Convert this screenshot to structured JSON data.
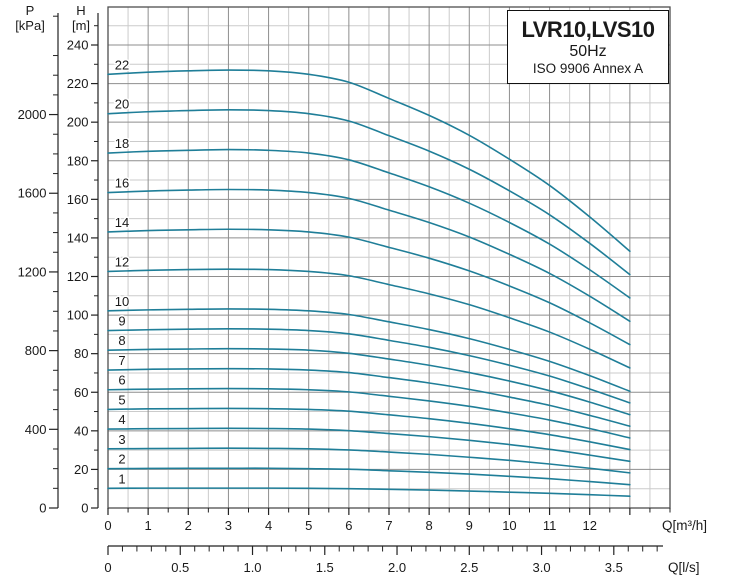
{
  "colors": {
    "curve": "#1f7e98",
    "grid_minor": "#cbcbcb",
    "grid_major": "#8e8e8e",
    "plot_border": "#4f4f4f",
    "axis_line": "#222222",
    "text": "#1a1a1a",
    "background": "#ffffff"
  },
  "title_box": {
    "model": "LVR10,LVS10",
    "frequency": "50Hz",
    "standard": "ISO 9906 Annex A"
  },
  "p_axis": {
    "symbol": "P",
    "unit": "[kPa]",
    "tick_labels": [
      0,
      400,
      800,
      1200,
      1600,
      2000
    ],
    "minor_step_kpa": 100,
    "minor_max_kpa": 2500
  },
  "h_axis": {
    "symbol": "H",
    "unit": "[m]",
    "tick_labels": [
      0,
      20,
      40,
      60,
      80,
      100,
      120,
      140,
      160,
      180,
      200,
      220,
      240
    ],
    "minor_step_m": 10,
    "minor_max_m": 250
  },
  "q_axis": {
    "unit_label": "Q[m³/h]",
    "tick_labels": [
      0,
      1,
      2,
      3,
      4,
      5,
      6,
      7,
      8,
      9,
      10,
      11,
      12
    ],
    "minor_step": 0.5,
    "axis_max": 14
  },
  "ls_axis": {
    "unit_label": "Q[l/s]",
    "tick_labels": [
      "0",
      "0.5",
      "1.0",
      "1.5",
      "2.0",
      "2.5",
      "3.0",
      "3.5"
    ],
    "minor_step": 0.1,
    "axis_max": 3.8
  },
  "chart_data": {
    "type": "line",
    "title": "LVR10,LVS10  50Hz  ISO 9906 Annex A",
    "xlabel": "Q[m³/h]",
    "ylabel": "H[m]",
    "x_range_m3h": [
      0,
      14
    ],
    "y_range_m": [
      0,
      260
    ],
    "grid": "on",
    "secondary_x_axis": "Q[l/s], 0 to 3.8 (1 l/s = 3.6 m³/h)",
    "secondary_y_axis": "P[kPa], 0 to 2500 (1 m ≈ 9.81 kPa)",
    "curves_end_at_m3h": 13,
    "x_m3h": [
      0,
      1,
      2,
      3,
      4,
      5,
      6,
      7,
      8,
      9,
      10,
      11,
      12,
      13
    ],
    "head_per_stage_m": [
      10.22,
      10.27,
      10.3,
      10.32,
      10.3,
      10.22,
      10.03,
      9.65,
      9.25,
      8.78,
      8.22,
      7.6,
      6.86,
      6.05
    ],
    "series": [
      {
        "name": "22",
        "stages": 22,
        "head_m": [
          224.8,
          225.9,
          226.6,
          227.0,
          226.6,
          224.8,
          220.7,
          212.3,
          203.5,
          193.2,
          180.8,
          167.2,
          150.9,
          133.1
        ]
      },
      {
        "name": "20",
        "stages": 20,
        "head_m": [
          204.4,
          205.4,
          206.0,
          206.4,
          206.0,
          204.4,
          200.6,
          193.0,
          185.0,
          175.6,
          164.4,
          152.0,
          137.2,
          121.0
        ]
      },
      {
        "name": "18",
        "stages": 18,
        "head_m": [
          184.0,
          184.9,
          185.4,
          185.8,
          185.4,
          184.0,
          180.5,
          173.7,
          166.5,
          158.0,
          148.0,
          136.8,
          123.5,
          108.9
        ]
      },
      {
        "name": "16",
        "stages": 16,
        "head_m": [
          163.5,
          164.3,
          164.8,
          165.1,
          164.8,
          163.5,
          160.5,
          154.4,
          148.0,
          140.5,
          131.5,
          121.6,
          109.8,
          96.8
        ]
      },
      {
        "name": "14",
        "stages": 14,
        "head_m": [
          143.1,
          143.8,
          144.2,
          144.5,
          144.2,
          143.1,
          140.4,
          135.1,
          129.5,
          122.9,
          115.1,
          106.4,
          96.0,
          84.7
        ]
      },
      {
        "name": "12",
        "stages": 12,
        "head_m": [
          122.6,
          123.2,
          123.6,
          123.8,
          123.6,
          122.6,
          120.4,
          115.8,
          111.0,
          105.4,
          98.6,
          91.2,
          82.3,
          72.6
        ]
      },
      {
        "name": "10",
        "stages": 10,
        "head_m": [
          102.2,
          102.7,
          103.0,
          103.2,
          103.0,
          102.2,
          100.3,
          96.5,
          92.5,
          87.8,
          82.2,
          76.0,
          68.6,
          60.5
        ]
      },
      {
        "name": "9",
        "stages": 9,
        "head_m": [
          92.0,
          92.4,
          92.7,
          92.9,
          92.7,
          92.0,
          90.3,
          86.9,
          83.3,
          79.0,
          74.0,
          68.4,
          61.7,
          54.5
        ]
      },
      {
        "name": "8",
        "stages": 8,
        "head_m": [
          81.8,
          82.2,
          82.4,
          82.6,
          82.4,
          81.8,
          80.2,
          77.2,
          74.0,
          70.2,
          65.8,
          60.8,
          54.9,
          48.4
        ]
      },
      {
        "name": "7",
        "stages": 7,
        "head_m": [
          71.5,
          71.9,
          72.1,
          72.2,
          72.1,
          71.5,
          70.2,
          67.6,
          64.8,
          61.5,
          57.5,
          53.2,
          48.0,
          42.4
        ]
      },
      {
        "name": "6",
        "stages": 6,
        "head_m": [
          61.3,
          61.6,
          61.8,
          61.9,
          61.8,
          61.3,
          60.2,
          57.9,
          55.5,
          52.7,
          49.3,
          45.6,
          41.2,
          36.3
        ]
      },
      {
        "name": "5",
        "stages": 5,
        "head_m": [
          51.1,
          51.4,
          51.5,
          51.6,
          51.5,
          51.1,
          50.2,
          48.3,
          46.3,
          43.9,
          41.1,
          38.0,
          34.3,
          30.3
        ]
      },
      {
        "name": "4",
        "stages": 4,
        "head_m": [
          40.9,
          41.1,
          41.2,
          41.3,
          41.2,
          40.9,
          40.1,
          38.6,
          37.0,
          35.1,
          32.9,
          30.4,
          27.4,
          24.2
        ]
      },
      {
        "name": "3",
        "stages": 3,
        "head_m": [
          30.7,
          30.8,
          30.9,
          31.0,
          30.9,
          30.7,
          30.1,
          29.0,
          27.8,
          26.3,
          24.7,
          22.8,
          20.6,
          18.2
        ]
      },
      {
        "name": "2",
        "stages": 2,
        "head_m": [
          20.4,
          20.5,
          20.6,
          20.6,
          20.6,
          20.4,
          20.1,
          19.3,
          18.5,
          17.6,
          16.4,
          15.2,
          13.7,
          12.1
        ]
      },
      {
        "name": "1",
        "stages": 1,
        "head_m": [
          10.2,
          10.3,
          10.3,
          10.3,
          10.3,
          10.2,
          10.0,
          9.7,
          9.3,
          8.8,
          8.2,
          7.6,
          6.9,
          6.1
        ]
      }
    ]
  }
}
